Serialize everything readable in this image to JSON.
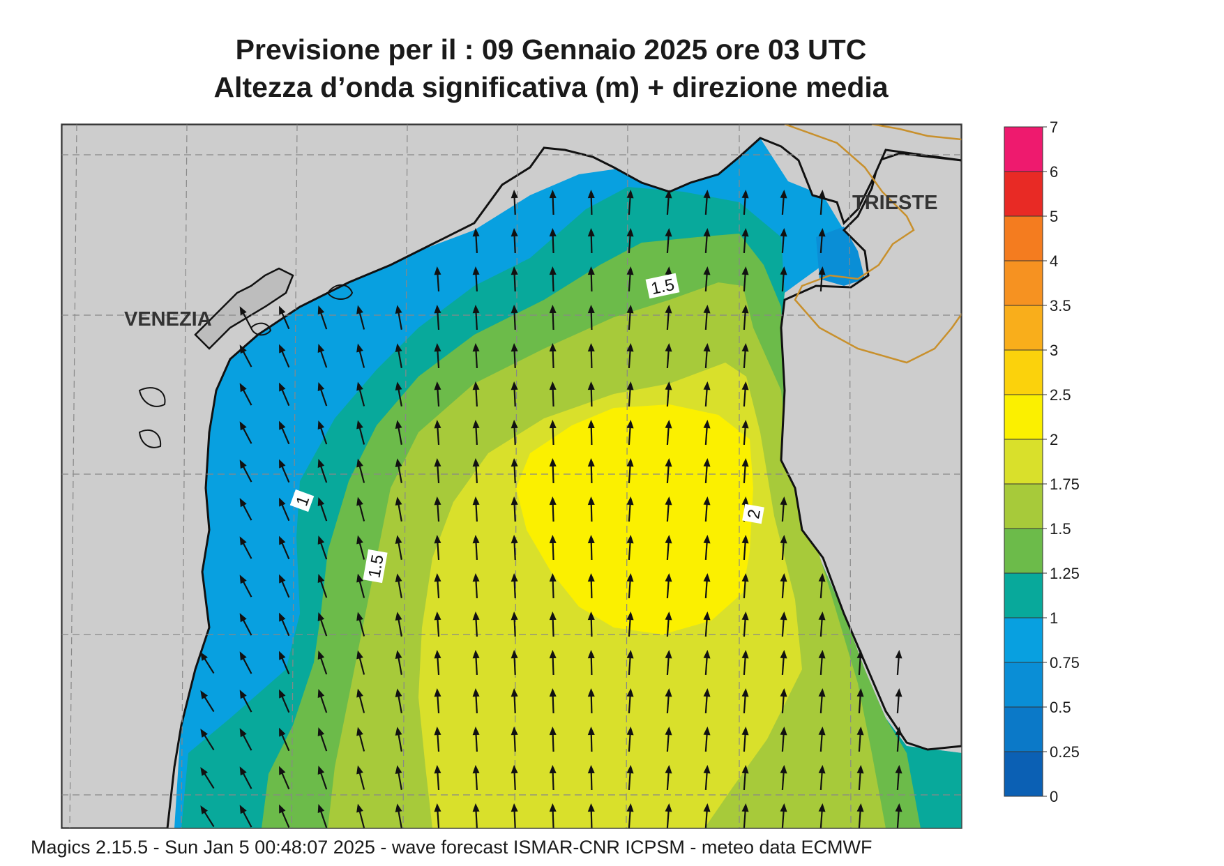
{
  "title": {
    "line1": "Previsione per il  :  09  Gennaio  2025   ore 03 UTC",
    "line2": "Altezza d’onda significativa (m) + direzione media"
  },
  "map": {
    "places": [
      {
        "name": "VENEZIA"
      },
      {
        "name": "TRIESTE"
      }
    ],
    "contour_labels": [
      "1.5",
      "1",
      "1.5",
      "2"
    ],
    "land_color": "#cdcdcd",
    "coast_color": "#111111",
    "border_color": "#c8902c"
  },
  "legend": {
    "title": "",
    "ticks": [
      "7",
      "6",
      "5",
      "4",
      "3.5",
      "3",
      "2.5",
      "2",
      "1.75",
      "1.5",
      "1.25",
      "1",
      "0.75",
      "0.5",
      "0.25",
      "0"
    ],
    "colors": [
      "#ee1a6e",
      "#e82a25",
      "#f47c1f",
      "#f69221",
      "#f9ae1b",
      "#fbd20c",
      "#fbf000",
      "#d9e02b",
      "#a7ca3a",
      "#6cbb4a",
      "#08a99b",
      "#08a0e0",
      "#0a8ed6",
      "#0b79c8",
      "#0b60b4"
    ]
  },
  "footer": "Magics 2.15.5 - Sun Jan  5 00:48:07 2025 - wave forecast  ISMAR-CNR  ICPSM - meteo data   ECMWF"
}
